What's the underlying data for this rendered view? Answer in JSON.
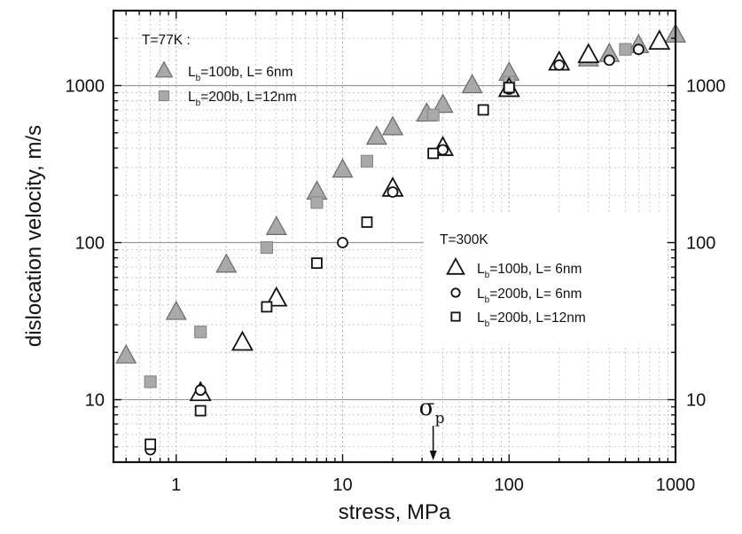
{
  "chart_data": {
    "type": "scatter",
    "title": "",
    "xlabel": "stress, MPa",
    "ylabel": "dislocation velocity, m/s",
    "x_scale": "log",
    "y_scale": "log",
    "xlim": [
      0.42,
      1000
    ],
    "ylim": [
      4,
      3000
    ],
    "x_ticks": [
      1,
      10,
      100,
      1000
    ],
    "x_tick_labels": [
      "1",
      "10",
      "100",
      "1000"
    ],
    "y_ticks": [
      10,
      100,
      1000
    ],
    "y_tick_labels": [
      "10",
      "100",
      "1000"
    ],
    "grid": true,
    "annotation": {
      "symbol": "σ",
      "subscript": "p",
      "x": 35
    },
    "legends": [
      {
        "title": "T=77K :",
        "placement": "top-left",
        "entries": [
          {
            "series": 0,
            "prefix": "L",
            "sub": "b",
            "suffix": "=100b, L=  6nm"
          },
          {
            "series": 1,
            "prefix": "L",
            "sub": "b",
            "suffix": "=200b, L=12nm"
          }
        ]
      },
      {
        "title": "T=300K",
        "placement": "center-right",
        "entries": [
          {
            "series": 2,
            "prefix": "L",
            "sub": "b",
            "suffix": "=100b, L= 6nm"
          },
          {
            "series": 3,
            "prefix": "L",
            "sub": "b",
            "suffix": "=200b, L= 6nm"
          },
          {
            "series": 4,
            "prefix": "L",
            "sub": "b",
            "suffix": "=200b, L=12nm"
          }
        ]
      }
    ],
    "series": [
      {
        "marker": "triangle",
        "filled": true,
        "size": "large",
        "fill": "#a9a9a9",
        "stroke": "#6a6a6a",
        "points": [
          [
            0.5,
            19
          ],
          [
            1,
            36
          ],
          [
            2,
            72
          ],
          [
            4,
            125
          ],
          [
            7,
            210
          ],
          [
            10,
            290
          ],
          [
            16,
            470
          ],
          [
            20,
            540
          ],
          [
            32,
            660
          ],
          [
            40,
            750
          ],
          [
            60,
            1000
          ],
          [
            100,
            1200
          ],
          [
            200,
            1400
          ],
          [
            300,
            1480
          ],
          [
            400,
            1580
          ],
          [
            600,
            1800
          ],
          [
            1000,
            2100
          ]
        ]
      },
      {
        "marker": "square",
        "filled": true,
        "size": "small",
        "fill": "#a9a9a9",
        "stroke": "#8a8a8a",
        "points": [
          [
            0.7,
            13
          ],
          [
            1.4,
            27
          ],
          [
            3.5,
            93
          ],
          [
            7,
            180
          ],
          [
            14,
            330
          ],
          [
            35,
            650
          ],
          [
            100,
            1050
          ],
          [
            500,
            1700
          ]
        ]
      },
      {
        "marker": "triangle",
        "filled": false,
        "size": "large",
        "fill": "#ffffff",
        "stroke": "#111111",
        "points": [
          [
            1.4,
            11
          ],
          [
            2.5,
            23
          ],
          [
            4,
            44
          ],
          [
            20,
            220
          ],
          [
            40,
            400
          ],
          [
            100,
            950
          ],
          [
            200,
            1400
          ],
          [
            300,
            1560
          ],
          [
            800,
            1900
          ]
        ]
      },
      {
        "marker": "circle",
        "filled": false,
        "size": "small",
        "fill": "#ffffff",
        "stroke": "#111111",
        "points": [
          [
            0.7,
            4.8
          ],
          [
            1.4,
            11.5
          ],
          [
            10,
            100
          ],
          [
            20,
            210
          ],
          [
            40,
            390
          ],
          [
            100,
            950
          ],
          [
            200,
            1350
          ],
          [
            400,
            1450
          ],
          [
            600,
            1700
          ]
        ]
      },
      {
        "marker": "square",
        "filled": false,
        "size": "small",
        "fill": "#ffffff",
        "stroke": "#111111",
        "points": [
          [
            0.7,
            5.2
          ],
          [
            1.4,
            8.5
          ],
          [
            3.5,
            39
          ],
          [
            7,
            74
          ],
          [
            14,
            135
          ],
          [
            35,
            370
          ],
          [
            70,
            700
          ],
          [
            100,
            970
          ]
        ]
      }
    ]
  }
}
